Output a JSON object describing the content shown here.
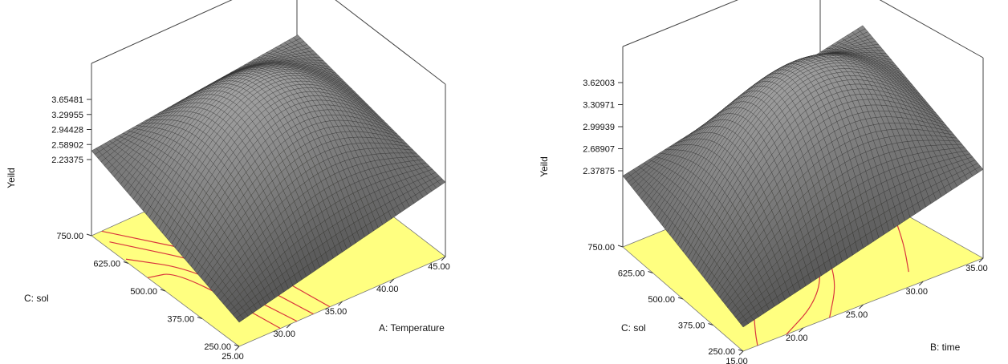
{
  "chart_data": [
    {
      "type": "surface",
      "zlabel": "Yeild",
      "xlabel": "A: Temperature",
      "ylabel": "C: sol",
      "x_ticks": [
        "25.00",
        "30.00",
        "35.00",
        "40.00",
        "45.00"
      ],
      "y_ticks": [
        "250.00",
        "375.00",
        "500.00",
        "625.00",
        "750.00"
      ],
      "z_ticks": [
        "2.23375",
        "2.58902",
        "2.94428",
        "3.29955",
        "3.65481"
      ],
      "xlim": [
        25,
        45
      ],
      "ylim": [
        250,
        750
      ],
      "zlim": [
        2.23375,
        3.65481
      ],
      "floor_color": "#ffff80",
      "contour_color": "#d9363e",
      "surface_color": "#8c8c8c"
    },
    {
      "type": "surface",
      "zlabel": "Yeild",
      "xlabel": "B: time",
      "ylabel": "C: sol",
      "x_ticks": [
        "15.00",
        "20.00",
        "25.00",
        "30.00",
        "35.00"
      ],
      "y_ticks": [
        "250.00",
        "375.00",
        "500.00",
        "625.00",
        "750.00"
      ],
      "z_ticks": [
        "2.37875",
        "2.68907",
        "2.99939",
        "3.30971",
        "3.62003"
      ],
      "xlim": [
        15,
        35
      ],
      "ylim": [
        250,
        750
      ],
      "zlim": [
        2.37875,
        3.62003
      ],
      "floor_color": "#ffff80",
      "contour_color": "#d9363e",
      "surface_color": "#8c8c8c"
    }
  ]
}
